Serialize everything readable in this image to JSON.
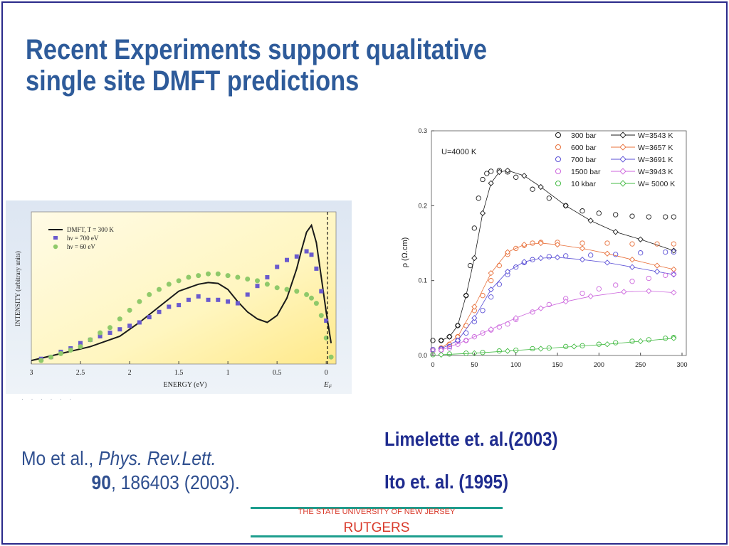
{
  "slide": {
    "title_lines": [
      "Recent Experiments support qualitative",
      "single site DMFT predictions"
    ]
  },
  "citations": {
    "mo_line1_prefix": "Mo  et  al.,  ",
    "mo_line1_journal": "Phys.  Rev.Lett.",
    "mo_volume": "90",
    "mo_rest": ", 186403  (2003).",
    "limelette": "Limelette et. al.(2003)",
    "ito": "Ito et. al. (1995)"
  },
  "footer": {
    "university": "THE STATE UNIVERSITY OF NEW JERSEY",
    "name": "RUTGERS"
  },
  "colors": {
    "title": "#2e5b9a",
    "citation_left": "#2f4f8f",
    "citation_right": "#1f2c8f",
    "footer_text": "#d93a2b",
    "footer_rule": "#1e9e8e",
    "border": "#2a2a8a"
  },
  "chart_data": [
    {
      "type": "line",
      "xlabel": "ENERGY (eV)",
      "ylabel": "INTENSITY (arbitrary units)",
      "xlim": [
        3,
        -0.1
      ],
      "x_reversed": true,
      "xticks": [
        "3",
        "2.5",
        "2",
        "1.5",
        "1",
        "0.5",
        "0"
      ],
      "fermi_label": "E",
      "fermi_sub": "F",
      "background": "yellow-gradient",
      "legend": {
        "position": "top-left",
        "entries": [
          "DMFT, T = 300 K",
          "hν = 700 eV",
          "hν = 60 eV"
        ]
      },
      "series": [
        {
          "name": "DMFT, T = 300 K",
          "style": "line",
          "color": "#1a1a1a",
          "x": [
            3.0,
            2.7,
            2.4,
            2.1,
            1.9,
            1.7,
            1.5,
            1.3,
            1.2,
            1.1,
            1.0,
            0.9,
            0.8,
            0.7,
            0.6,
            0.5,
            0.4,
            0.3,
            0.25,
            0.2,
            0.15,
            0.1,
            0.05,
            0.0,
            -0.05
          ],
          "values": [
            0.02,
            0.06,
            0.1,
            0.16,
            0.24,
            0.33,
            0.42,
            0.46,
            0.47,
            0.465,
            0.43,
            0.36,
            0.3,
            0.26,
            0.24,
            0.28,
            0.38,
            0.55,
            0.66,
            0.76,
            0.8,
            0.7,
            0.5,
            0.3,
            0.12
          ]
        },
        {
          "name": "hν = 700 eV",
          "style": "square",
          "color": "#6a5acd",
          "x": [
            2.9,
            2.8,
            2.7,
            2.6,
            2.5,
            2.4,
            2.3,
            2.2,
            2.1,
            2.0,
            1.9,
            1.8,
            1.7,
            1.6,
            1.5,
            1.4,
            1.3,
            1.2,
            1.1,
            1.0,
            0.9,
            0.8,
            0.7,
            0.6,
            0.5,
            0.4,
            0.3,
            0.2,
            0.15,
            0.1,
            0.05,
            0.0
          ],
          "values": [
            0.03,
            0.04,
            0.07,
            0.09,
            0.12,
            0.14,
            0.16,
            0.18,
            0.2,
            0.22,
            0.24,
            0.27,
            0.3,
            0.33,
            0.34,
            0.37,
            0.39,
            0.37,
            0.37,
            0.36,
            0.35,
            0.4,
            0.45,
            0.5,
            0.56,
            0.6,
            0.62,
            0.65,
            0.63,
            0.55,
            0.42,
            0.25
          ]
        },
        {
          "name": "hν = 60 eV",
          "style": "circle",
          "color": "#8fc96a",
          "x": [
            2.9,
            2.8,
            2.7,
            2.6,
            2.5,
            2.4,
            2.3,
            2.2,
            2.1,
            2.0,
            1.9,
            1.8,
            1.7,
            1.6,
            1.5,
            1.4,
            1.3,
            1.2,
            1.1,
            1.0,
            0.9,
            0.8,
            0.7,
            0.6,
            0.5,
            0.4,
            0.3,
            0.2,
            0.15,
            0.1,
            0.05,
            0.0,
            -0.05
          ],
          "values": [
            0.02,
            0.04,
            0.06,
            0.08,
            0.1,
            0.14,
            0.18,
            0.21,
            0.26,
            0.31,
            0.36,
            0.4,
            0.43,
            0.46,
            0.48,
            0.5,
            0.51,
            0.52,
            0.52,
            0.51,
            0.5,
            0.49,
            0.48,
            0.46,
            0.44,
            0.43,
            0.42,
            0.4,
            0.38,
            0.35,
            0.28,
            0.15,
            0.04
          ]
        }
      ]
    },
    {
      "type": "line",
      "xlabel": "",
      "ylabel": "ρ (Ω.cm)",
      "xlim": [
        0,
        300
      ],
      "ylim": [
        0,
        0.3
      ],
      "xticks": [
        "0",
        "50",
        "100",
        "150",
        "200",
        "250",
        "300"
      ],
      "yticks": [
        "0.0",
        "0.1",
        "0.2",
        "0.3"
      ],
      "annotation": "U=4000 K",
      "legend": {
        "position": "top-right",
        "columns": [
          [
            "300 bar",
            "600 bar",
            "700 bar",
            "1500 bar",
            "10 kbar"
          ],
          [
            "W=3543 K",
            "W=3657 K",
            "W=3691 K",
            "W=3943 K",
            "W= 5000 K"
          ]
        ]
      },
      "series": [
        {
          "name": "300 bar",
          "style": "circle",
          "color": "#1a1a1a",
          "x": [
            0,
            10,
            20,
            30,
            40,
            45,
            50,
            55,
            60,
            65,
            70,
            80,
            90,
            100,
            120,
            140,
            160,
            180,
            200,
            220,
            240,
            260,
            280,
            290
          ],
          "values": [
            0.02,
            0.02,
            0.025,
            0.04,
            0.08,
            0.12,
            0.17,
            0.21,
            0.235,
            0.243,
            0.246,
            0.247,
            0.245,
            0.238,
            0.222,
            0.21,
            0.2,
            0.193,
            0.19,
            0.188,
            0.186,
            0.185,
            0.185,
            0.185
          ]
        },
        {
          "name": "W=3543 K",
          "style": "diamond",
          "color": "#1a1a1a",
          "x": [
            10,
            20,
            30,
            40,
            50,
            60,
            70,
            80,
            90,
            110,
            130,
            160,
            190,
            220,
            250,
            290
          ],
          "values": [
            0.02,
            0.025,
            0.04,
            0.08,
            0.13,
            0.19,
            0.23,
            0.245,
            0.247,
            0.24,
            0.225,
            0.2,
            0.18,
            0.165,
            0.155,
            0.14
          ]
        },
        {
          "name": "600 bar",
          "style": "circle",
          "color": "#e8703a",
          "x": [
            0,
            10,
            20,
            30,
            40,
            50,
            60,
            70,
            80,
            90,
            100,
            110,
            120,
            130,
            150,
            180,
            210,
            240,
            270,
            290
          ],
          "values": [
            0.008,
            0.01,
            0.015,
            0.025,
            0.04,
            0.06,
            0.08,
            0.1,
            0.12,
            0.135,
            0.143,
            0.147,
            0.15,
            0.151,
            0.151,
            0.15,
            0.15,
            0.149,
            0.149,
            0.149
          ]
        },
        {
          "name": "W=3657 K",
          "style": "diamond",
          "color": "#e8703a",
          "x": [
            10,
            30,
            50,
            70,
            90,
            110,
            130,
            150,
            180,
            210,
            240,
            270,
            290
          ],
          "values": [
            0.01,
            0.025,
            0.065,
            0.11,
            0.138,
            0.148,
            0.15,
            0.148,
            0.143,
            0.136,
            0.128,
            0.12,
            0.115
          ]
        },
        {
          "name": "700 bar",
          "style": "circle",
          "color": "#5a4fd6",
          "x": [
            0,
            10,
            20,
            30,
            40,
            50,
            60,
            70,
            80,
            90,
            100,
            110,
            120,
            140,
            160,
            190,
            220,
            250,
            280,
            290
          ],
          "values": [
            0.008,
            0.009,
            0.012,
            0.02,
            0.03,
            0.045,
            0.06,
            0.078,
            0.095,
            0.108,
            0.118,
            0.124,
            0.128,
            0.132,
            0.133,
            0.134,
            0.135,
            0.137,
            0.138,
            0.138
          ]
        },
        {
          "name": "W=3691 K",
          "style": "diamond",
          "color": "#5a4fd6",
          "x": [
            10,
            30,
            50,
            70,
            90,
            110,
            130,
            150,
            180,
            210,
            240,
            270,
            290
          ],
          "values": [
            0.009,
            0.02,
            0.05,
            0.088,
            0.112,
            0.125,
            0.13,
            0.131,
            0.128,
            0.124,
            0.118,
            0.112,
            0.108
          ]
        },
        {
          "name": "1500 bar",
          "style": "circle",
          "color": "#cc66dd",
          "x": [
            0,
            10,
            20,
            30,
            40,
            50,
            60,
            70,
            80,
            90,
            100,
            120,
            140,
            160,
            180,
            200,
            220,
            240,
            260,
            280,
            290
          ],
          "values": [
            0.006,
            0.007,
            0.01,
            0.015,
            0.02,
            0.025,
            0.03,
            0.034,
            0.038,
            0.042,
            0.048,
            0.058,
            0.068,
            0.076,
            0.083,
            0.089,
            0.094,
            0.099,
            0.103,
            0.107,
            0.109
          ]
        },
        {
          "name": "W=3943 K",
          "style": "diamond",
          "color": "#cc66dd",
          "x": [
            10,
            40,
            70,
            100,
            130,
            160,
            190,
            230,
            260,
            290
          ],
          "values": [
            0.007,
            0.02,
            0.035,
            0.05,
            0.063,
            0.072,
            0.079,
            0.085,
            0.086,
            0.084
          ]
        },
        {
          "name": "10 kbar",
          "style": "circle",
          "color": "#44bb44",
          "x": [
            0,
            20,
            40,
            60,
            80,
            100,
            120,
            140,
            160,
            180,
            200,
            220,
            240,
            260,
            280,
            290
          ],
          "values": [
            0.001,
            0.002,
            0.003,
            0.004,
            0.006,
            0.007,
            0.009,
            0.01,
            0.012,
            0.013,
            0.015,
            0.017,
            0.019,
            0.021,
            0.023,
            0.024
          ]
        },
        {
          "name": "W= 5000 K",
          "style": "diamond",
          "color": "#44bb44",
          "x": [
            10,
            50,
            90,
            130,
            170,
            210,
            250,
            290
          ],
          "values": [
            0.001,
            0.003,
            0.006,
            0.009,
            0.012,
            0.015,
            0.019,
            0.023
          ]
        }
      ]
    }
  ]
}
